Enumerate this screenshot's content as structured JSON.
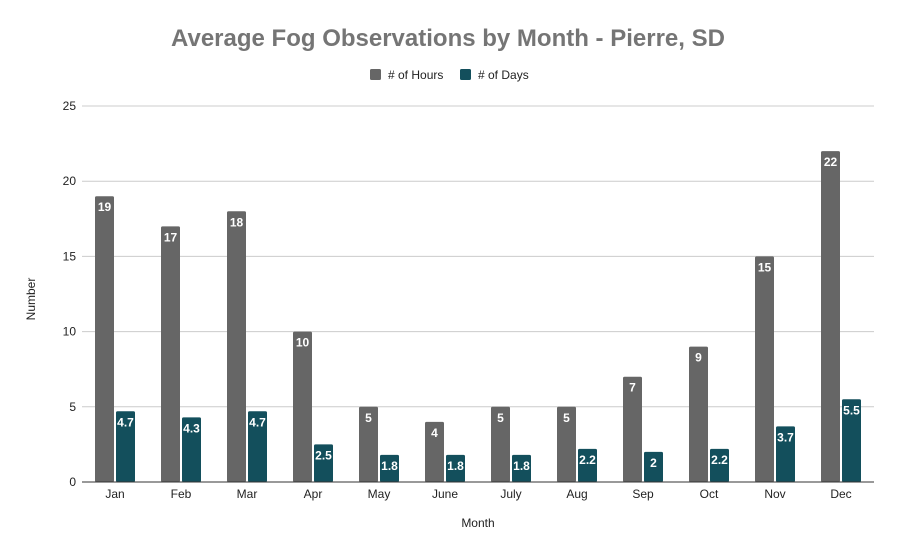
{
  "chart_data": {
    "type": "bar",
    "title": "Average Fog Observations by Month - Pierre, SD",
    "xlabel": "Month",
    "ylabel": "Number",
    "ylim": [
      0,
      25
    ],
    "yticks": [
      0,
      5,
      10,
      15,
      20,
      25
    ],
    "grid": true,
    "legend_position": "top-center",
    "categories": [
      "Jan",
      "Feb",
      "Mar",
      "Apr",
      "May",
      "June",
      "July",
      "Aug",
      "Sep",
      "Oct",
      "Nov",
      "Dec"
    ],
    "series": [
      {
        "name": "# of Hours",
        "color": "#666666",
        "values": [
          19,
          17,
          18,
          10,
          5,
          4,
          5,
          5,
          7,
          9,
          15,
          22
        ]
      },
      {
        "name": "# of Days",
        "color": "#134f5c",
        "values": [
          4.7,
          4.3,
          4.7,
          2.5,
          1.8,
          1.8,
          1.8,
          2.2,
          2,
          2.2,
          3.7,
          5.5
        ]
      }
    ]
  }
}
